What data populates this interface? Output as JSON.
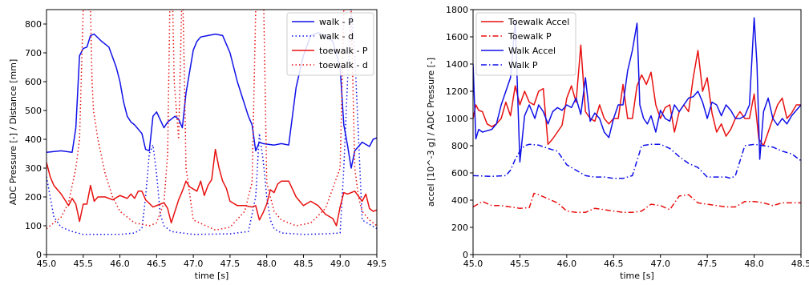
{
  "colors": {
    "blue": "#1010e8",
    "red": "#e81010"
  },
  "chart_data": [
    {
      "type": "line",
      "xlabel": "time [s]",
      "ylabel": "ADC Pressure [-] / Distance [mm]",
      "xlim": [
        45.0,
        49.5
      ],
      "ylim": [
        0,
        850
      ],
      "xticks": [
        45.0,
        45.5,
        46.0,
        46.5,
        47.0,
        47.5,
        48.0,
        48.5,
        49.0,
        49.5
      ],
      "xtick_labels": [
        "45.0",
        "45.5",
        "46.0",
        "46.5",
        "47.0",
        "47.5",
        "48.0",
        "48.5",
        "49.0",
        "49.5"
      ],
      "yticks": [
        0,
        100,
        200,
        300,
        400,
        500,
        600,
        700,
        800
      ],
      "ytick_labels": [
        "0",
        "100",
        "200",
        "300",
        "400",
        "500",
        "600",
        "700",
        "800"
      ],
      "legend_position": "top-right",
      "series": [
        {
          "name": "walk - P",
          "color": "blue",
          "style": "solid",
          "x": [
            45.0,
            45.2,
            45.35,
            45.4,
            45.45,
            45.5,
            45.55,
            45.6,
            45.65,
            45.75,
            45.85,
            45.95,
            46.0,
            46.05,
            46.1,
            46.15,
            46.2,
            46.3,
            46.35,
            46.4,
            46.45,
            46.5,
            46.6,
            46.65,
            46.7,
            46.75,
            46.8,
            46.85,
            46.9,
            47.0,
            47.05,
            47.1,
            47.2,
            47.3,
            47.4,
            47.5,
            47.6,
            47.7,
            47.75,
            47.8,
            47.85,
            47.9,
            47.95,
            48.1,
            48.2,
            48.3,
            48.4,
            48.5,
            48.6,
            48.7,
            48.8,
            48.9,
            49.0,
            49.05,
            49.1,
            49.15,
            49.2,
            49.3,
            49.4,
            49.45,
            49.5
          ],
          "y": [
            355,
            360,
            355,
            440,
            690,
            715,
            720,
            760,
            765,
            740,
            720,
            650,
            600,
            530,
            480,
            460,
            450,
            420,
            365,
            360,
            480,
            495,
            440,
            460,
            470,
            480,
            470,
            440,
            560,
            710,
            740,
            755,
            760,
            765,
            760,
            700,
            600,
            520,
            480,
            450,
            360,
            390,
            385,
            380,
            385,
            380,
            580,
            690,
            760,
            770,
            760,
            740,
            650,
            450,
            380,
            300,
            360,
            390,
            375,
            400,
            405
          ]
        },
        {
          "name": "walk - d",
          "color": "blue",
          "style": "dotted",
          "x": [
            45.0,
            45.1,
            45.2,
            45.35,
            45.5,
            45.7,
            46.0,
            46.2,
            46.3,
            46.35,
            46.4,
            46.45,
            46.5,
            46.55,
            46.6,
            46.7,
            47.0,
            47.5,
            47.75,
            47.85,
            47.9,
            47.95,
            48.0,
            48.05,
            48.1,
            48.2,
            48.5,
            48.8,
            49.0,
            49.05,
            49.1,
            49.15,
            49.2,
            49.3,
            49.5
          ],
          "y": [
            270,
            130,
            95,
            80,
            70,
            70,
            70,
            75,
            90,
            200,
            350,
            380,
            280,
            140,
            100,
            80,
            70,
            72,
            80,
            200,
            420,
            330,
            200,
            120,
            90,
            75,
            70,
            72,
            75,
            300,
            600,
            850,
            700,
            120,
            90
          ]
        },
        {
          "name": "toewalk - P",
          "color": "red",
          "style": "solid",
          "x": [
            45.0,
            45.05,
            45.1,
            45.2,
            45.3,
            45.35,
            45.4,
            45.45,
            45.5,
            45.55,
            45.6,
            45.65,
            45.7,
            45.8,
            45.9,
            46.0,
            46.05,
            46.1,
            46.15,
            46.2,
            46.25,
            46.3,
            46.35,
            46.45,
            46.55,
            46.6,
            46.65,
            46.7,
            46.75,
            46.8,
            46.85,
            46.9,
            46.95,
            47.05,
            47.1,
            47.15,
            47.2,
            47.25,
            47.3,
            47.35,
            47.4,
            47.45,
            47.5,
            47.6,
            47.7,
            47.8,
            47.85,
            47.9,
            47.95,
            48.0,
            48.05,
            48.1,
            48.15,
            48.2,
            48.3,
            48.4,
            48.5,
            48.6,
            48.7,
            48.8,
            48.9,
            48.95,
            49.0,
            49.05,
            49.1,
            49.2,
            49.3,
            49.35,
            49.4,
            49.45,
            49.5
          ],
          "y": [
            320,
            270,
            240,
            210,
            170,
            195,
            175,
            115,
            175,
            175,
            240,
            185,
            200,
            200,
            190,
            205,
            200,
            195,
            210,
            195,
            220,
            220,
            190,
            165,
            175,
            180,
            160,
            110,
            150,
            190,
            220,
            255,
            235,
            220,
            255,
            205,
            240,
            260,
            365,
            300,
            255,
            230,
            185,
            170,
            170,
            165,
            170,
            120,
            145,
            175,
            225,
            215,
            245,
            255,
            255,
            200,
            170,
            185,
            170,
            140,
            125,
            100,
            165,
            215,
            210,
            220,
            185,
            210,
            160,
            150,
            155
          ]
        },
        {
          "name": "toewalk - d",
          "color": "red",
          "style": "dotted",
          "x": [
            45.0,
            45.1,
            45.2,
            45.3,
            45.4,
            45.45,
            45.5,
            45.53,
            45.56,
            45.58,
            45.6,
            45.62,
            45.64,
            45.7,
            45.8,
            45.9,
            46.0,
            46.2,
            46.4,
            46.5,
            46.6,
            46.65,
            46.68,
            46.7,
            46.72,
            46.74,
            46.8,
            46.84,
            46.86,
            46.88,
            46.9,
            47.0,
            47.3,
            47.5,
            47.7,
            47.8,
            47.85,
            47.88,
            47.9,
            47.93,
            47.96,
            48.0,
            48.1,
            48.2,
            48.4,
            48.6,
            48.8,
            49.0,
            49.05,
            49.1,
            49.15,
            49.2,
            49.25,
            49.3,
            49.4,
            49.5
          ],
          "y": [
            90,
            110,
            130,
            180,
            300,
            400,
            850,
            850,
            850,
            850,
            850,
            600,
            500,
            400,
            280,
            200,
            150,
            110,
            100,
            110,
            180,
            350,
            850,
            850,
            850,
            600,
            400,
            850,
            850,
            600,
            300,
            120,
            85,
            95,
            150,
            250,
            850,
            850,
            850,
            850,
            850,
            250,
            150,
            120,
            100,
            110,
            160,
            300,
            850,
            850,
            850,
            300,
            200,
            150,
            120,
            100
          ]
        }
      ]
    },
    {
      "type": "line",
      "xlabel": "time [s]",
      "ylabel": "accel [10^-3 g] / ADC Pressure [-]",
      "xlim": [
        45.0,
        48.5
      ],
      "ylim": [
        0,
        1800
      ],
      "xticks": [
        45.0,
        45.5,
        46.0,
        46.5,
        47.0,
        47.5,
        48.0,
        48.5
      ],
      "xtick_labels": [
        "45.0",
        "45.5",
        "46.0",
        "46.5",
        "47.0",
        "47.5",
        "48.0",
        "48.5"
      ],
      "yticks": [
        0,
        200,
        400,
        600,
        800,
        1000,
        1200,
        1400,
        1600,
        1800
      ],
      "ytick_labels": [
        "0",
        "200",
        "400",
        "600",
        "800",
        "1000",
        "1200",
        "1400",
        "1600",
        "1800"
      ],
      "legend_position": "top-left",
      "series": [
        {
          "name": "Toewalk Accel",
          "color": "red",
          "style": "solid",
          "x": [
            45.0,
            45.03,
            45.06,
            45.1,
            45.15,
            45.2,
            45.25,
            45.3,
            45.35,
            45.4,
            45.45,
            45.5,
            45.55,
            45.6,
            45.65,
            45.7,
            45.75,
            45.8,
            45.85,
            45.9,
            45.95,
            46.0,
            46.05,
            46.1,
            46.15,
            46.2,
            46.25,
            46.3,
            46.35,
            46.4,
            46.45,
            46.5,
            46.55,
            46.6,
            46.65,
            46.7,
            46.75,
            46.8,
            46.85,
            46.9,
            46.95,
            47.0,
            47.05,
            47.1,
            47.15,
            47.2,
            47.25,
            47.3,
            47.35,
            47.4,
            47.45,
            47.5,
            47.55,
            47.6,
            47.65,
            47.7,
            47.75,
            47.8,
            47.85,
            47.9,
            47.95,
            48.0,
            48.05,
            48.1,
            48.15,
            48.2,
            48.25,
            48.3,
            48.35,
            48.4,
            48.45,
            48.5
          ],
          "y": [
            1000,
            1100,
            1060,
            1050,
            960,
            940,
            960,
            1000,
            1120,
            1020,
            1240,
            1100,
            1200,
            1120,
            1100,
            1200,
            1220,
            810,
            850,
            900,
            950,
            1150,
            1240,
            1120,
            1540,
            1050,
            1000,
            980,
            1100,
            1000,
            960,
            1000,
            1000,
            1250,
            1000,
            1000,
            1240,
            1320,
            1250,
            1340,
            1100,
            1000,
            1080,
            1100,
            900,
            1050,
            1100,
            1050,
            1300,
            1500,
            1200,
            1300,
            1040,
            900,
            960,
            870,
            920,
            1000,
            1050,
            1000,
            1000,
            1180,
            850,
            800,
            900,
            1000,
            1100,
            1150,
            1000,
            1040,
            1100,
            1100
          ]
        },
        {
          "name": "Toewalk P",
          "color": "red",
          "style": "dashdot",
          "x": [
            45.0,
            45.1,
            45.2,
            45.3,
            45.4,
            45.5,
            45.6,
            45.65,
            45.7,
            45.8,
            45.9,
            46.0,
            46.1,
            46.2,
            46.3,
            46.4,
            46.5,
            46.6,
            46.7,
            46.8,
            46.9,
            47.0,
            47.1,
            47.2,
            47.3,
            47.35,
            47.4,
            47.5,
            47.6,
            47.7,
            47.8,
            47.9,
            48.0,
            48.1,
            48.2,
            48.3,
            48.4,
            48.5
          ],
          "y": [
            350,
            390,
            360,
            360,
            350,
            340,
            345,
            450,
            440,
            410,
            380,
            320,
            310,
            310,
            340,
            330,
            320,
            310,
            310,
            320,
            370,
            360,
            330,
            430,
            440,
            410,
            380,
            370,
            360,
            350,
            350,
            390,
            390,
            380,
            360,
            380,
            380,
            380
          ]
        },
        {
          "name": "Walk Accel",
          "color": "blue",
          "style": "solid",
          "x": [
            45.0,
            45.03,
            45.06,
            45.1,
            45.15,
            45.2,
            45.25,
            45.3,
            45.35,
            45.4,
            45.45,
            45.5,
            45.55,
            45.6,
            45.63,
            45.66,
            45.7,
            45.75,
            45.8,
            45.85,
            45.9,
            45.95,
            46.0,
            46.05,
            46.1,
            46.15,
            46.2,
            46.25,
            46.3,
            46.35,
            46.4,
            46.45,
            46.5,
            46.55,
            46.6,
            46.65,
            46.7,
            46.75,
            46.78,
            46.82,
            46.86,
            46.9,
            46.95,
            47.0,
            47.05,
            47.1,
            47.15,
            47.2,
            47.25,
            47.3,
            47.35,
            47.4,
            47.45,
            47.5,
            47.55,
            47.6,
            47.65,
            47.7,
            47.75,
            47.8,
            47.85,
            47.9,
            47.95,
            48.0,
            48.03,
            48.06,
            48.1,
            48.15,
            48.2,
            48.25,
            48.3,
            48.35,
            48.4,
            48.45,
            48.5
          ],
          "y": [
            1400,
            850,
            920,
            900,
            910,
            920,
            960,
            1100,
            1200,
            1300,
            1720,
            680,
            1020,
            1100,
            1050,
            1000,
            1100,
            1050,
            960,
            1050,
            1080,
            1060,
            1100,
            1080,
            1150,
            1030,
            1300,
            980,
            1040,
            1000,
            900,
            860,
            1000,
            1100,
            1100,
            1350,
            1500,
            1700,
            1100,
            1000,
            960,
            1020,
            900,
            1060,
            1000,
            980,
            1100,
            1050,
            1100,
            1150,
            1160,
            1200,
            1120,
            1000,
            1120,
            1100,
            1020,
            1100,
            1060,
            1000,
            1000,
            1020,
            1100,
            1740,
            1400,
            700,
            1050,
            1150,
            1000,
            950,
            1000,
            960,
            1020,
            1060,
            1100
          ]
        },
        {
          "name": "Walk P",
          "color": "blue",
          "style": "dashdot",
          "x": [
            45.0,
            45.2,
            45.35,
            45.4,
            45.45,
            45.5,
            45.55,
            45.6,
            45.7,
            45.8,
            45.9,
            46.0,
            46.1,
            46.2,
            46.3,
            46.4,
            46.5,
            46.6,
            46.7,
            46.8,
            46.9,
            47.0,
            47.1,
            47.2,
            47.3,
            47.4,
            47.5,
            47.6,
            47.7,
            47.75,
            47.8,
            47.9,
            48.0,
            48.1,
            48.2,
            48.3,
            48.4,
            48.5
          ],
          "y": [
            580,
            575,
            580,
            620,
            700,
            760,
            800,
            810,
            805,
            780,
            760,
            660,
            620,
            580,
            570,
            570,
            560,
            560,
            580,
            800,
            810,
            810,
            780,
            720,
            670,
            640,
            570,
            570,
            570,
            560,
            580,
            800,
            810,
            800,
            790,
            760,
            740,
            690
          ]
        }
      ]
    }
  ]
}
